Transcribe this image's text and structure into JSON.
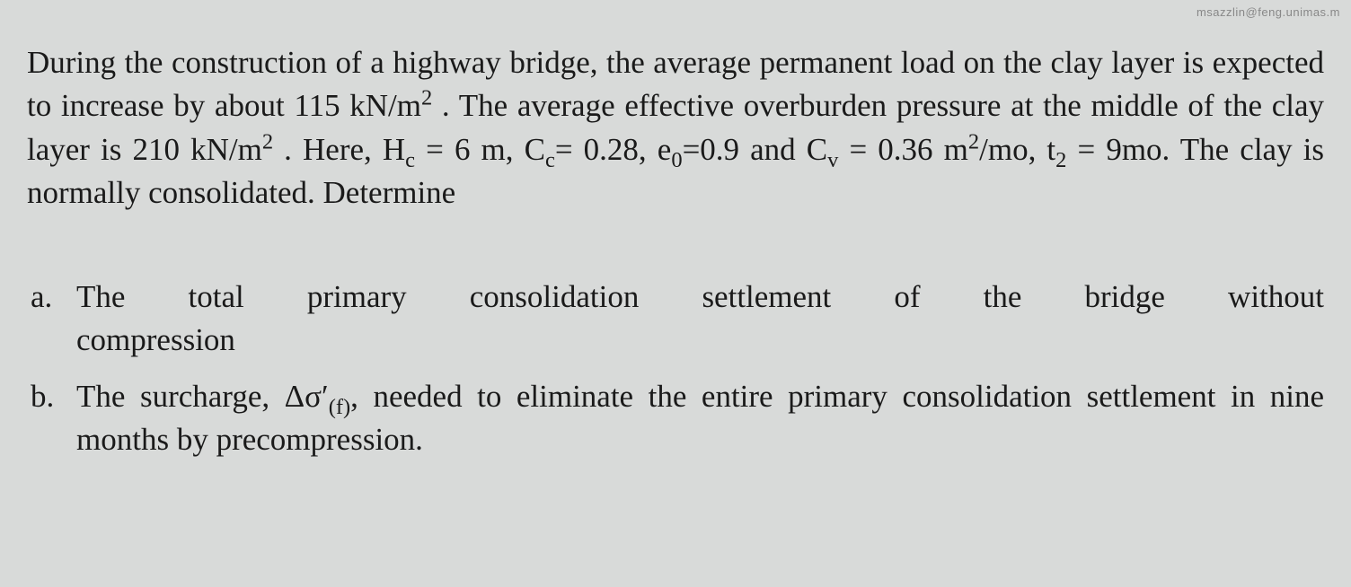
{
  "watermark": "msazzlin@feng.unimas.m",
  "problem": {
    "line1": "During the construction of a highway bridge, the average permanent load on",
    "line2_pre": "the clay layer is expected to increase by about 115 kN/m",
    "line2_sup": "2",
    "line2_post": " . The average",
    "line3_pre": "effective overburden pressure at the middle of the clay layer is 210 kN/m",
    "line3_sup": "2",
    "line3_post": " .",
    "line4_a": "Here, H",
    "line4_sub_c1": "c",
    "line4_b": " = 6 m, C",
    "line4_sub_c2": "c",
    "line4_c": "= 0.28, e",
    "line4_sub_0": "0",
    "line4_d": "=0.9 and C",
    "line4_sub_v": "v",
    "line4_e": " = 0.36 m",
    "line4_sup2": "2",
    "line4_f": "/mo,  t",
    "line4_sub_2": "2",
    "line4_g": " = 9mo. The clay is",
    "line5": "normally consolidated. Determine"
  },
  "parts": {
    "a": {
      "label": "a.",
      "line1": "The total primary consolidation settlement of the bridge without",
      "line2": "compression"
    },
    "b": {
      "label": "b.",
      "text_pre": "The surcharge, Δσ′",
      "text_sub": "(f)",
      "text_post": ", needed to eliminate the entire primary consolidation settlement in nine months by precompression."
    }
  }
}
